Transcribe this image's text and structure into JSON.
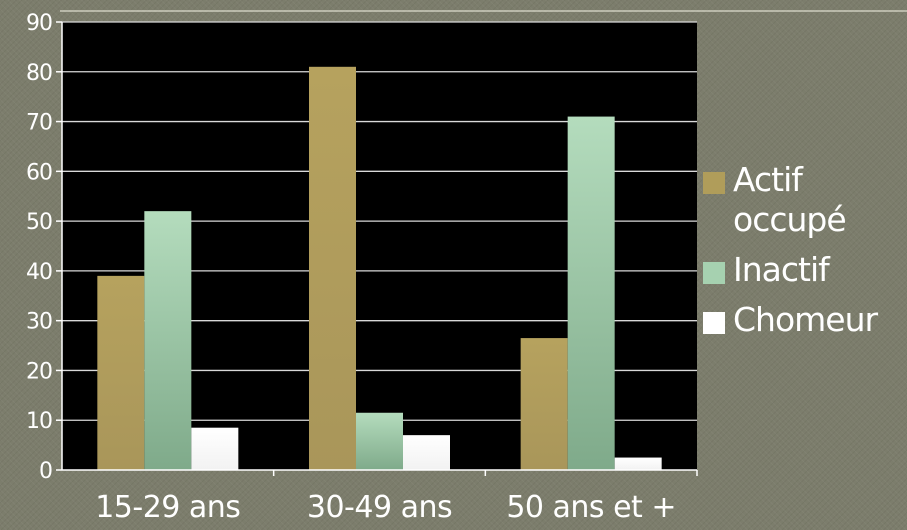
{
  "chart_data": {
    "type": "bar",
    "categories": [
      "15-29 ans",
      "30-49 ans",
      "50 ans et +"
    ],
    "series": [
      {
        "name": "Actif occupé",
        "values": [
          39,
          81,
          26.5
        ],
        "color": "#b09d5a"
      },
      {
        "name": "Inactif",
        "values": [
          52,
          11.5,
          71
        ],
        "color": "#a6d1b0"
      },
      {
        "name": "Chomeur",
        "values": [
          8.5,
          7,
          2.5
        ],
        "color": "#ffffff"
      }
    ],
    "title": "",
    "xlabel": "",
    "ylabel": "",
    "ylim": [
      0,
      90
    ],
    "yticks": [
      "0",
      "10",
      "20",
      "30",
      "40",
      "50",
      "60",
      "70",
      "80",
      "90"
    ],
    "grid": true,
    "legend_position": "right",
    "plot_background": "#000000",
    "gridline_color": "#d9d9d9"
  }
}
